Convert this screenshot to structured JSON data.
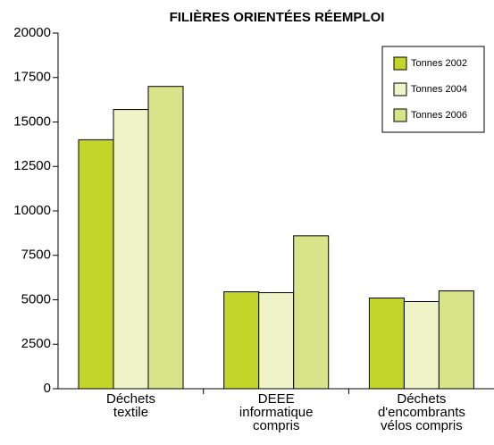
{
  "chart_data": {
    "type": "bar",
    "title": "FILIÈRES ORIENTÉES RÉEMPLOI",
    "categories": [
      [
        "Déchets",
        "textile"
      ],
      [
        "DEEE",
        "informatique",
        "compris"
      ],
      [
        "Déchets",
        "d'encombrants",
        "vélos compris"
      ]
    ],
    "series": [
      {
        "name": "Tonnes 2002",
        "color": "#c3d52b",
        "values": [
          14000,
          5450,
          5100
        ]
      },
      {
        "name": "Tonnes 2004",
        "color": "#eef3c8",
        "values": [
          15700,
          5400,
          4900
        ]
      },
      {
        "name": "Tonnes 2006",
        "color": "#d8e48a",
        "values": [
          17000,
          8600,
          5500
        ]
      }
    ],
    "ylim": [
      0,
      20000
    ],
    "yticks": [
      0,
      2500,
      5000,
      7500,
      10000,
      12500,
      15000,
      17500,
      20000
    ],
    "legend": "top-right"
  }
}
